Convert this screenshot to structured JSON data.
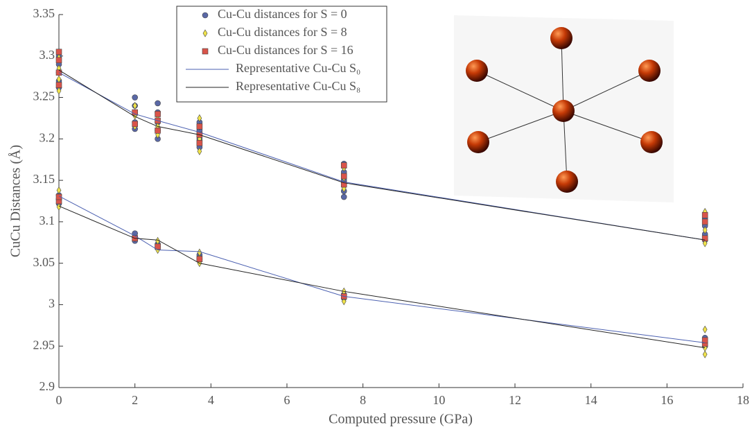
{
  "chart_data": {
    "type": "scatter",
    "xlabel": "Computed pressure (GPa)",
    "ylabel": "CuCu Distances (Å)",
    "xlim": [
      0,
      18
    ],
    "xticks": [
      0,
      2,
      4,
      6,
      8,
      10,
      12,
      14,
      16,
      18
    ],
    "ylim": [
      2.9,
      3.35
    ],
    "yticks": [
      2.9,
      2.95,
      3,
      3.05,
      3.1,
      3.15,
      3.2,
      3.25,
      3.3,
      3.35
    ],
    "grid": false,
    "legend": "top",
    "series": [
      {
        "name": "Cu-Cu distances for S = 0",
        "type": "scatter",
        "marker": "circle",
        "color": "#5a68a6",
        "x": [
          0,
          0,
          0,
          0,
          0,
          0,
          0,
          0,
          2,
          2,
          2,
          2,
          2,
          2,
          2,
          2,
          2.6,
          2.6,
          2.6,
          2.6,
          2.6,
          2.6,
          2.6,
          3.7,
          3.7,
          3.7,
          3.7,
          3.7,
          3.7,
          7.5,
          7.5,
          7.5,
          7.5,
          7.5,
          7.5,
          7.5,
          17,
          17,
          17,
          17,
          17,
          17,
          17
        ],
        "values": [
          3.262,
          3.27,
          3.28,
          3.29,
          3.3,
          3.122,
          3.127,
          3.132,
          3.212,
          3.22,
          3.23,
          3.24,
          3.25,
          3.077,
          3.082,
          3.086,
          3.2,
          3.21,
          3.22,
          3.232,
          3.243,
          3.07,
          3.073,
          3.19,
          3.2,
          3.21,
          3.22,
          3.055,
          3.06,
          3.13,
          3.137,
          3.15,
          3.16,
          3.17,
          3.008,
          3.012,
          3.078,
          3.085,
          3.095,
          3.104,
          2.95,
          2.955,
          2.96
        ]
      },
      {
        "name": "Cu-Cu distances for S = 8",
        "type": "scatter",
        "marker": "diamond",
        "color": "#f0e34a",
        "x": [
          0,
          0,
          0,
          0,
          0,
          0,
          0,
          2,
          2,
          2,
          2,
          2.6,
          2.6,
          2.6,
          2.6,
          2.6,
          2.6,
          3.7,
          3.7,
          3.7,
          3.7,
          3.7,
          3.7,
          3.7,
          7.5,
          7.5,
          7.5,
          7.5,
          7.5,
          7.5,
          17,
          17,
          17,
          17,
          17,
          17
        ],
        "values": [
          3.258,
          3.272,
          3.285,
          3.298,
          3.118,
          3.13,
          3.138,
          3.215,
          3.228,
          3.24,
          3.08,
          3.205,
          3.215,
          3.228,
          3.066,
          3.072,
          3.077,
          3.185,
          3.2,
          3.215,
          3.225,
          3.05,
          3.057,
          3.063,
          3.14,
          3.153,
          3.165,
          3.004,
          3.01,
          3.016,
          3.074,
          3.09,
          3.112,
          2.94,
          2.948,
          2.97
        ]
      },
      {
        "name": "Cu-Cu distances for S = 16",
        "type": "scatter",
        "marker": "square",
        "color": "#d9544a",
        "x": [
          0,
          0,
          0,
          0,
          0,
          0,
          2,
          2,
          2,
          2.6,
          2.6,
          2.6,
          2.6,
          3.7,
          3.7,
          3.7,
          3.7,
          7.5,
          7.5,
          7.5,
          7.5,
          17,
          17,
          17,
          17,
          17
        ],
        "values": [
          3.265,
          3.28,
          3.295,
          3.305,
          3.125,
          3.13,
          3.218,
          3.232,
          3.08,
          3.21,
          3.222,
          3.23,
          3.07,
          3.195,
          3.205,
          3.215,
          3.055,
          3.145,
          3.155,
          3.168,
          3.01,
          3.08,
          3.1,
          3.108,
          2.953,
          2.957
        ]
      },
      {
        "name": "Representative Cu-Cu S₀",
        "type": "line",
        "color": "#4a5fb0",
        "x": [
          0,
          2,
          2.6,
          3.7,
          7.5,
          17,
          null,
          0,
          2,
          2.6,
          3.7,
          7.5,
          17
        ],
        "values": [
          3.28,
          3.23,
          3.222,
          3.208,
          3.148,
          3.078,
          null,
          3.131,
          3.083,
          3.066,
          3.064,
          3.01,
          2.954
        ]
      },
      {
        "name": "Representative Cu-Cu S₈",
        "type": "line",
        "color": "#222222",
        "x": [
          0,
          2,
          2.6,
          3.7,
          7.5,
          17,
          null,
          0,
          2,
          2.6,
          3.7,
          7.5,
          17
        ],
        "values": [
          3.283,
          3.227,
          3.215,
          3.205,
          3.147,
          3.078,
          null,
          3.119,
          3.08,
          3.078,
          3.05,
          3.016,
          2.948
        ]
      }
    ]
  }
}
